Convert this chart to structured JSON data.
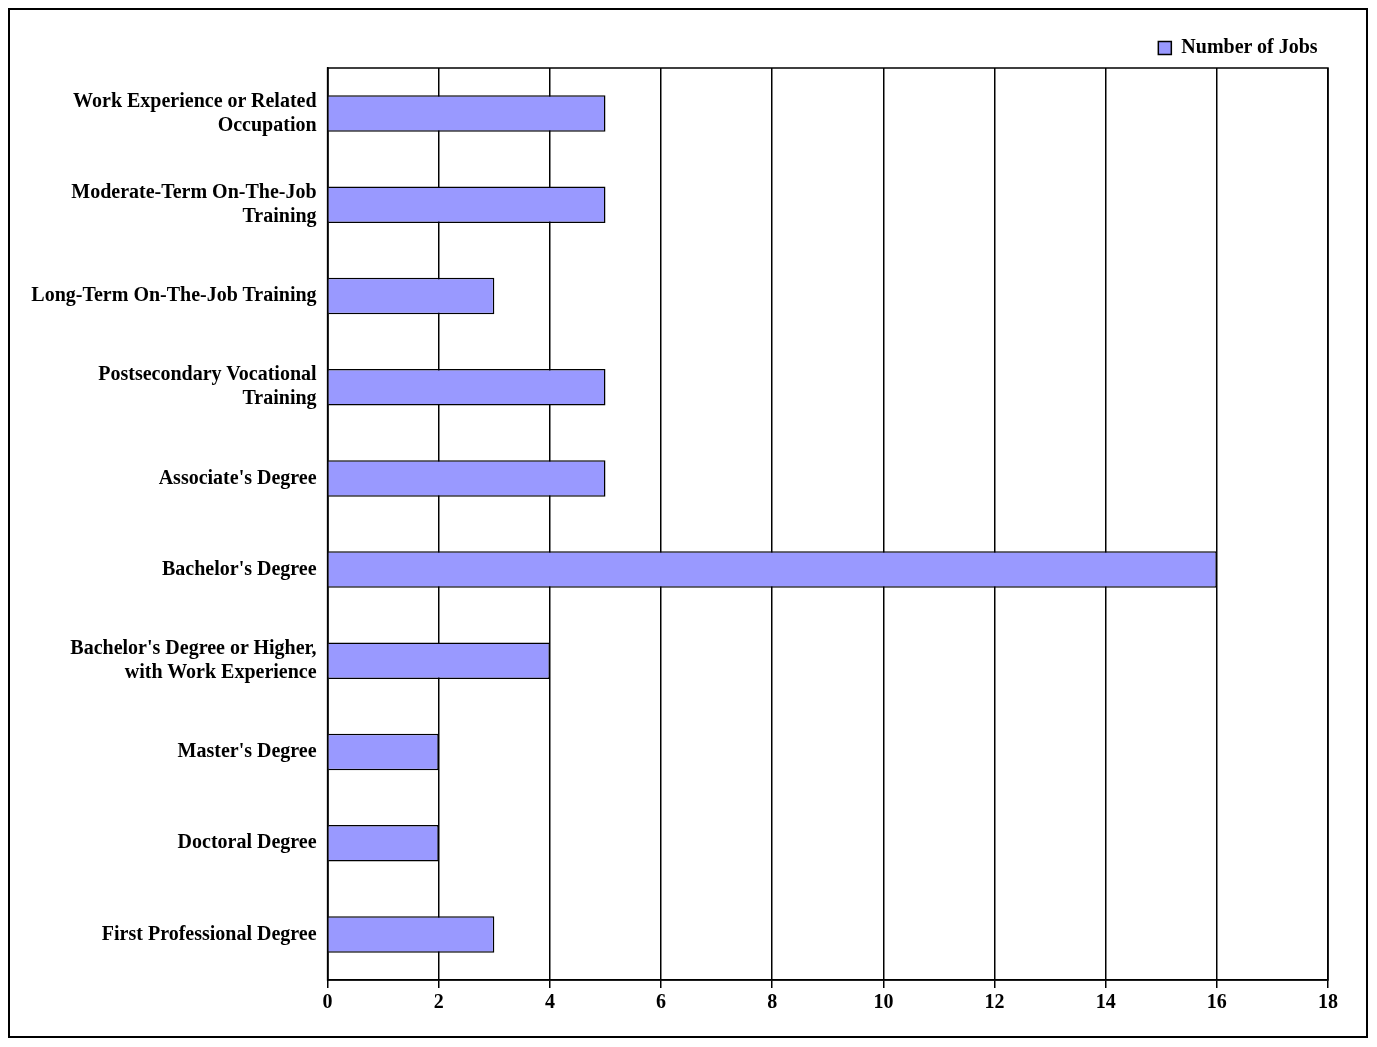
{
  "chart_data": {
    "type": "bar",
    "orientation": "horizontal",
    "categories": [
      "Work Experience or Related Occupation",
      "Moderate-Term On-The-Job Training",
      "Long-Term On-The-Job Training",
      "Postsecondary Vocational Training",
      "Associate's Degree",
      "Bachelor's Degree",
      "Bachelor's Degree or Higher, with Work Experience",
      "Master's Degree",
      "Doctoral Degree",
      "First Professional Degree"
    ],
    "series": [
      {
        "name": "Number of Jobs",
        "color": "#9999ff",
        "values": [
          5,
          5,
          3,
          5,
          5,
          16,
          4,
          2,
          2,
          3
        ]
      }
    ],
    "xlim": [
      0,
      18
    ],
    "xticks": [
      0,
      2,
      4,
      6,
      8,
      10,
      12,
      14,
      16,
      18
    ],
    "grid": "x",
    "legend": "top right"
  }
}
